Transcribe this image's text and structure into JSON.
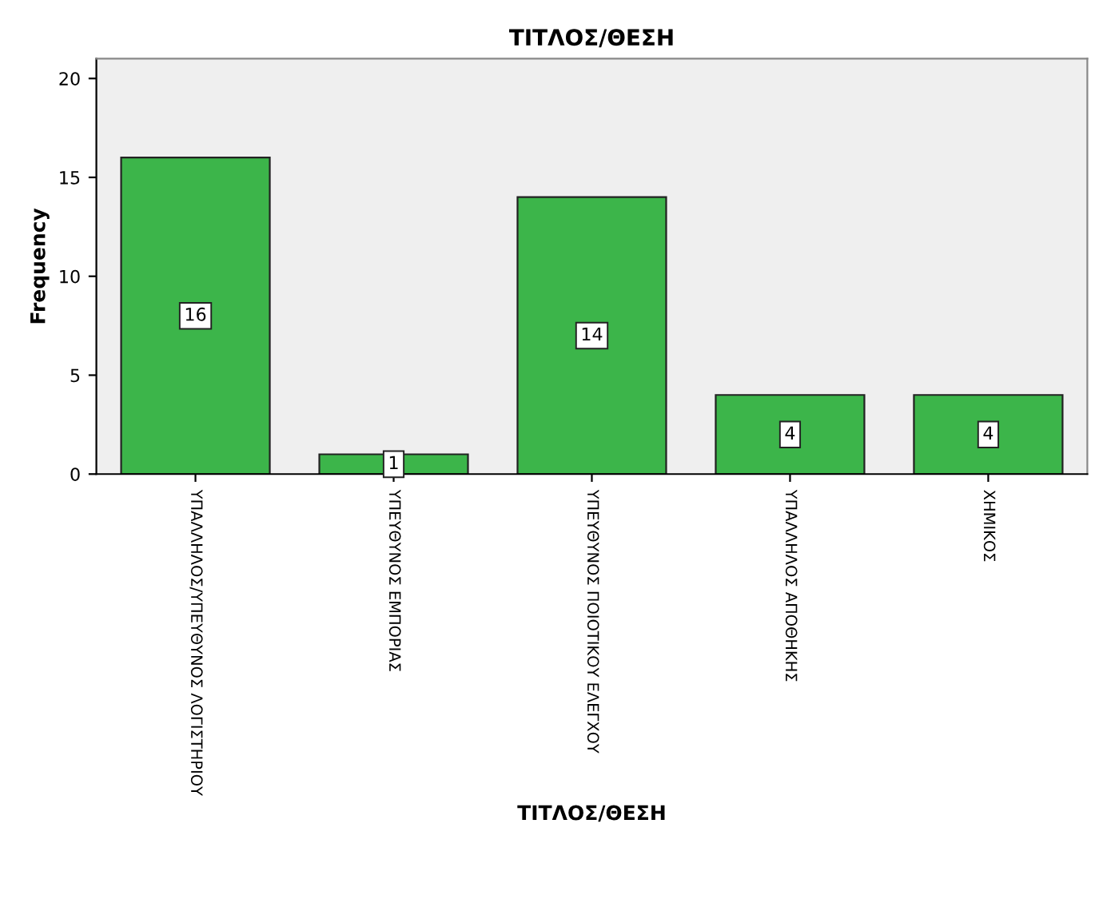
{
  "chart_data": {
    "type": "bar",
    "title": "ΤΙΤΛΟΣ/ΘΕΣΗ",
    "xlabel": "ΤΙΤΛΟΣ/ΘΕΣΗ",
    "ylabel": "Frequency",
    "categories": [
      "ΥΠΑΛΛΗΛΟΣ/ΥΠΕΥΘΥΝΟΣ ΛΟΓΙΣΤΗΡΙΟΥ",
      "ΥΠΕΥΘΥΝΟΣ ΕΜΠΟΡΙΑΣ",
      "ΥΠΕΥΘΥΝΟΣ ΠΟΙΟΤΙΚΟΥ ΕΛΕΓΧΟΥ",
      "ΥΠΑΛΛΗΛΟΣ ΑΠΟΘΗΚΗΣ",
      "ΧΗΜΙΚΟΣ"
    ],
    "values": [
      16,
      1,
      14,
      4,
      4
    ],
    "color": "#3cb54a",
    "data_labels": true,
    "ylim": [
      0,
      21
    ],
    "yticks": [
      0,
      5,
      10,
      15,
      20
    ],
    "grid": false,
    "legend": false
  }
}
